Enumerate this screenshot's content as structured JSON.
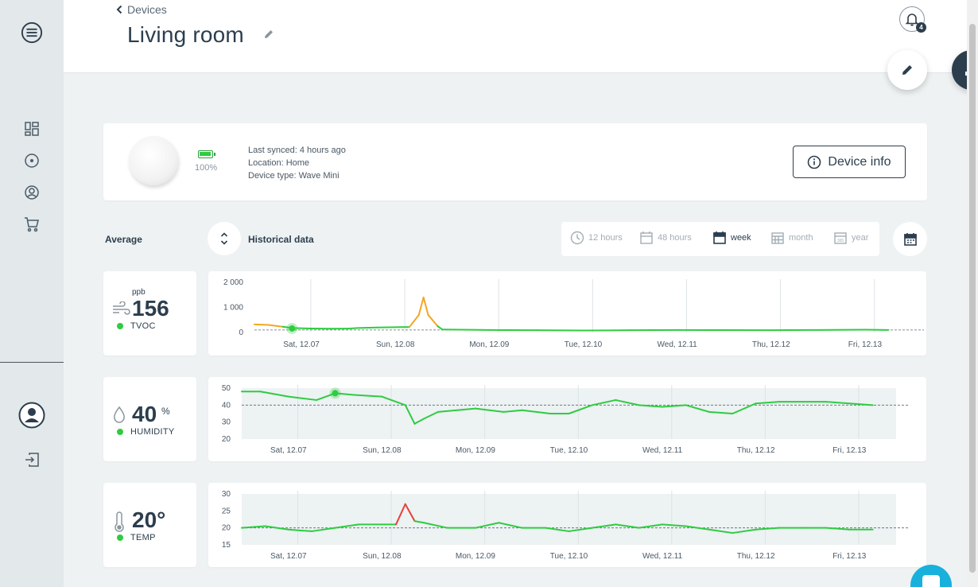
{
  "header": {
    "breadcrumb": "Devices",
    "title": "Living room",
    "notification_count": "4"
  },
  "device": {
    "battery": "100%",
    "battery_level": 1.0,
    "last_synced": "Last synced: 4 hours ago",
    "location": "Location: Home",
    "device_type": "Device type: Wave Mini",
    "info_button": "Device info"
  },
  "controls": {
    "average_label": "Average",
    "historical_label": "Historical data",
    "periods": [
      "12 hours",
      "48 hours",
      "week",
      "month",
      "year"
    ],
    "active_period": "week"
  },
  "metrics": [
    {
      "name": "TVOC",
      "value": "156",
      "unit": "ppb",
      "icon": "wind-icon",
      "status_color": "#2ecc40"
    },
    {
      "name": "HUMIDITY",
      "value": "40",
      "unit": "%",
      "icon": "droplet-icon",
      "status_color": "#2ecc40"
    },
    {
      "name": "TEMP",
      "value": "20°",
      "unit": "",
      "icon": "thermometer-icon",
      "status_color": "#2ecc40"
    }
  ],
  "colors": {
    "primary": "#2c3e4d",
    "good": "#2ecc40",
    "warn": "#f5a623",
    "bad": "#e8403a",
    "cold": "#1e90e0",
    "chat": "#17b1dc"
  },
  "chart_data": [
    {
      "type": "line",
      "series": [
        {
          "name": "TVOC",
          "x": [
            0,
            0.15,
            0.3,
            0.4,
            0.6,
            0.8,
            1.0,
            1.1,
            1.3,
            1.5,
            1.65,
            1.75,
            1.8,
            1.85,
            1.95,
            2.0,
            2.5,
            3.0,
            3.5,
            4.0,
            4.5,
            5.0,
            5.5,
            6.0,
            6.5,
            6.75
          ],
          "y": [
            320,
            300,
            230,
            180,
            160,
            150,
            155,
            180,
            200,
            210,
            220,
            700,
            1400,
            700,
            250,
            120,
            100,
            90,
            80,
            90,
            100,
            95,
            90,
            100,
            110,
            100
          ]
        }
      ],
      "x_tick_labels": [
        "Sat, 12.07",
        "Sun, 12.08",
        "Mon, 12.09",
        "Tue, 12.10",
        "Wed, 12.11",
        "Thu, 12.12",
        "Fri, 12.13"
      ],
      "y_ticks": [
        "2 000",
        "1 000",
        "0"
      ],
      "ylim": [
        0,
        2000
      ],
      "reference_line": 100,
      "marker": {
        "x": 0.4,
        "y": 160
      }
    },
    {
      "type": "area",
      "series": [
        {
          "name": "HUMIDITY",
          "x": [
            0,
            0.2,
            0.5,
            0.8,
            1.0,
            1.2,
            1.5,
            1.75,
            1.85,
            1.95,
            2.1,
            2.5,
            2.8,
            3.0,
            3.3,
            3.5,
            3.75,
            4.0,
            4.25,
            4.5,
            4.75,
            5.0,
            5.25,
            5.5,
            5.75,
            6.0,
            6.25,
            6.5,
            6.75
          ],
          "y": [
            48,
            48,
            45,
            43,
            47,
            46,
            45,
            40,
            29,
            32,
            36,
            38,
            36,
            37,
            35,
            35,
            40,
            43,
            40,
            39,
            40,
            36,
            35,
            41,
            42,
            42,
            42,
            41,
            40
          ]
        }
      ],
      "x_tick_labels": [
        "Sat, 12.07",
        "Sun, 12.08",
        "Mon, 12.09",
        "Tue, 12.10",
        "Wed, 12.11",
        "Thu, 12.12",
        "Fri, 12.13"
      ],
      "y_ticks": [
        "50",
        "40",
        "30",
        "20"
      ],
      "ylim": [
        20,
        50
      ],
      "reference_line": 40,
      "marker": {
        "x": 1.0,
        "y": 47
      }
    },
    {
      "type": "area",
      "series": [
        {
          "name": "TEMP",
          "x": [
            0,
            0.25,
            0.5,
            0.75,
            1.0,
            1.25,
            1.5,
            1.65,
            1.75,
            1.85,
            1.95,
            2.2,
            2.5,
            2.75,
            3.0,
            3.25,
            3.5,
            3.75,
            4.0,
            4.25,
            4.5,
            4.75,
            5.0,
            5.25,
            5.5,
            5.75,
            6.0,
            6.25,
            6.5,
            6.75
          ],
          "y": [
            20,
            20.5,
            19.5,
            19,
            20,
            21,
            21,
            21,
            27,
            22,
            21.5,
            20,
            20,
            21.5,
            20,
            20,
            19,
            20,
            21,
            20,
            21,
            20.5,
            19.5,
            18.5,
            19.5,
            20,
            20,
            20,
            19.5,
            19.5
          ]
        }
      ],
      "x_tick_labels": [
        "Sat, 12.07",
        "Sun, 12.08",
        "Mon, 12.09",
        "Tue, 12.10",
        "Wed, 12.11",
        "Thu, 12.12",
        "Fri, 12.13"
      ],
      "y_ticks": [
        "30",
        "25",
        "20",
        "15"
      ],
      "ylim": [
        15,
        30
      ],
      "reference_line": 20
    }
  ]
}
